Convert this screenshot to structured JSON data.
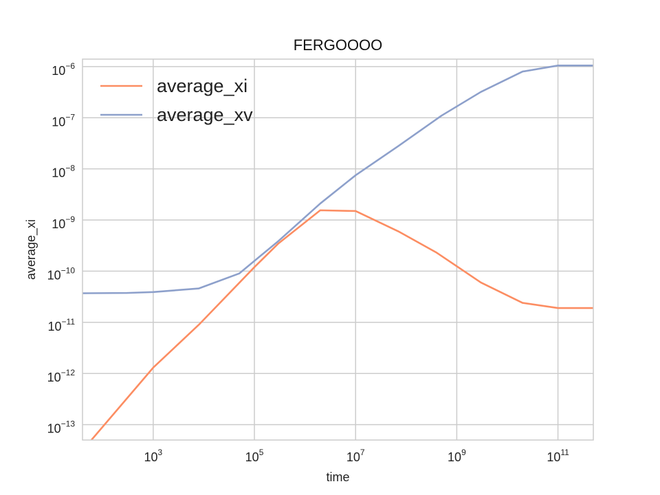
{
  "chart_data": {
    "type": "line",
    "title": "FERGOOOO",
    "xlabel": "time",
    "ylabel": "average_xi",
    "xscale": "log",
    "yscale": "log",
    "xlim": [
      40,
      500000000000
    ],
    "ylim": [
      5e-14,
      1.4e-06
    ],
    "grid": true,
    "legend": "top-left",
    "x_ticks": [
      1000,
      100000,
      10000000,
      1000000000,
      100000000000
    ],
    "x_tick_labels": [
      {
        "base": "10",
        "exp": "3"
      },
      {
        "base": "10",
        "exp": "5"
      },
      {
        "base": "10",
        "exp": "7"
      },
      {
        "base": "10",
        "exp": "9"
      },
      {
        "base": "10",
        "exp": "11"
      }
    ],
    "y_ticks": [
      1e-13,
      1e-12,
      1e-11,
      1e-10,
      1e-09,
      1e-08,
      1e-07,
      1e-06
    ],
    "y_tick_labels": [
      {
        "base": "10",
        "exp": "−13"
      },
      {
        "base": "10",
        "exp": "−12"
      },
      {
        "base": "10",
        "exp": "−11"
      },
      {
        "base": "10",
        "exp": "−10"
      },
      {
        "base": "10",
        "exp": "−9"
      },
      {
        "base": "10",
        "exp": "−8"
      },
      {
        "base": "10",
        "exp": "−7"
      },
      {
        "base": "10",
        "exp": "−6"
      }
    ],
    "series": [
      {
        "name": "average_xi",
        "color": "#fc8d62",
        "x": [
          60,
          1000,
          8000,
          100000,
          300000,
          2000000,
          10000000,
          70000000,
          400000000,
          3000000000,
          20000000000,
          100000000000,
          500000000000
        ],
        "y": [
          5e-14,
          1.3e-12,
          9e-12,
          1.2e-10,
          3.5e-10,
          1.55e-09,
          1.5e-09,
          6e-10,
          2.3e-10,
          6e-11,
          2.4e-11,
          1.9e-11,
          1.9e-11
        ]
      },
      {
        "name": "average_xv",
        "color": "#8da0cb",
        "x": [
          40,
          300,
          1000,
          8000,
          50000,
          300000,
          2000000,
          10000000,
          70000000,
          500000000,
          3000000000,
          20000000000,
          100000000000,
          500000000000
        ],
        "y": [
          3.7e-11,
          3.75e-11,
          3.9e-11,
          4.6e-11,
          9e-11,
          3.9e-10,
          2.1e-09,
          7.5e-09,
          2.8e-08,
          1.1e-07,
          3.2e-07,
          8e-07,
          1.05e-06,
          1.05e-06
        ]
      }
    ]
  }
}
